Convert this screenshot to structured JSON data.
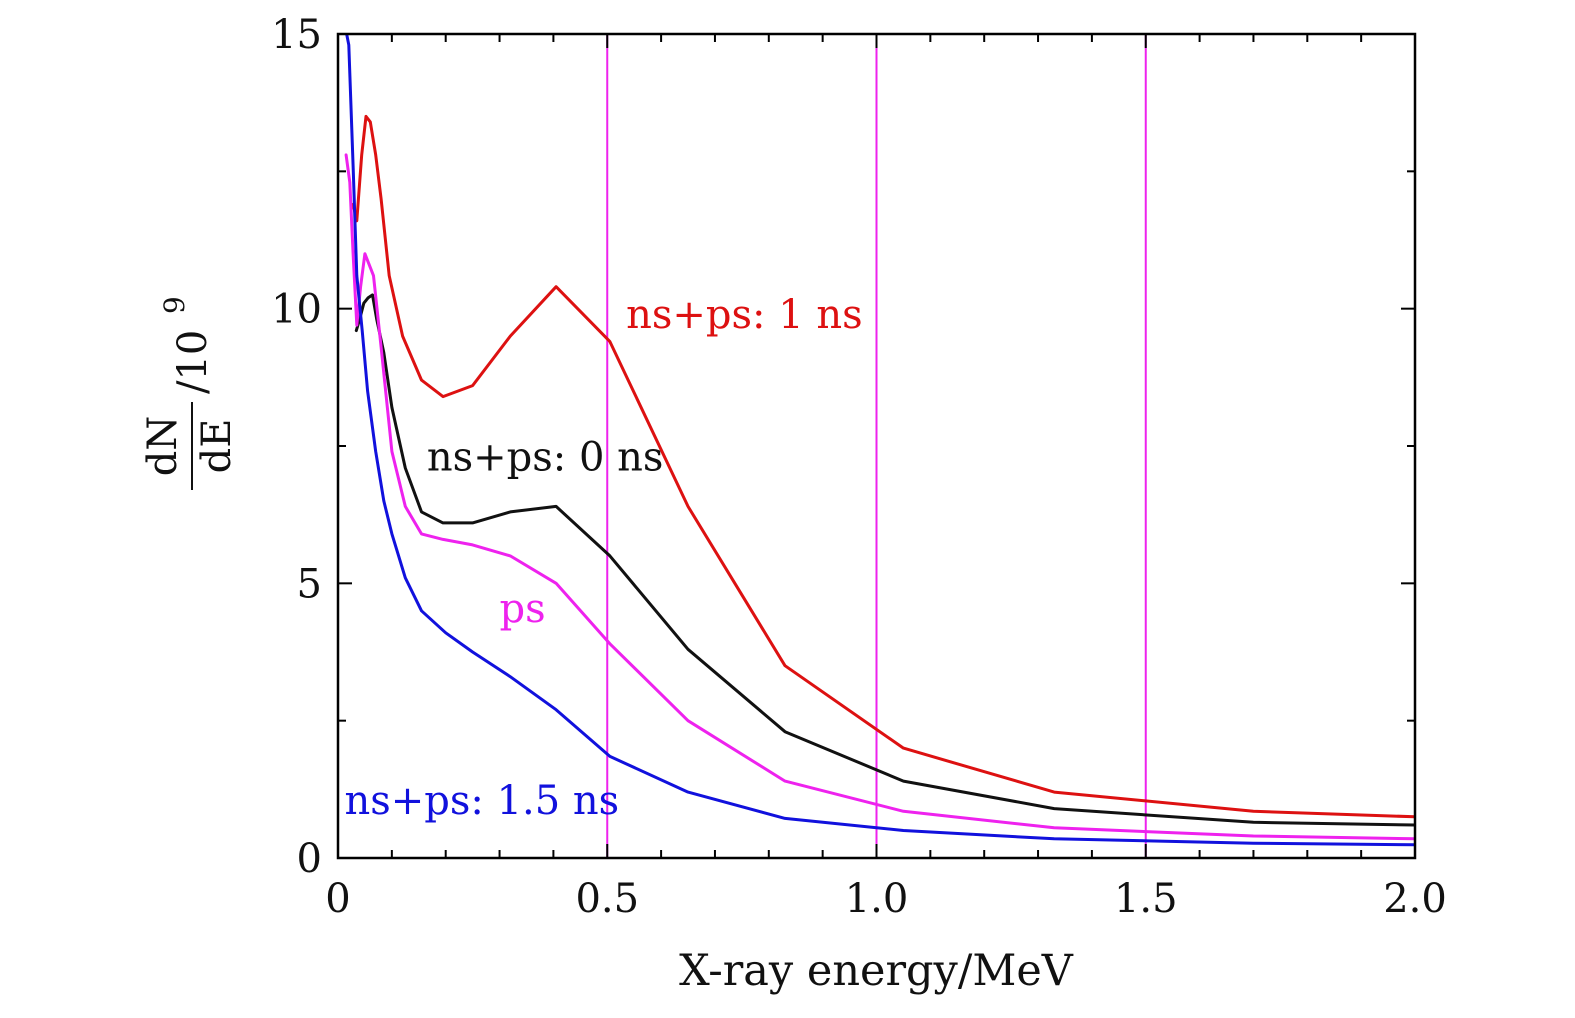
{
  "chart_data": {
    "type": "line",
    "title": "",
    "xlabel": "X-ray energy/MeV",
    "ylabel": {
      "numerator": "dN",
      "denominator": "dE",
      "suffix": "/10",
      "exponent": "9"
    },
    "xlim": [
      0,
      2.0
    ],
    "ylim": [
      0,
      15
    ],
    "x_ticks": [
      0,
      0.5,
      1.0,
      1.5,
      2.0
    ],
    "x_tick_labels": [
      "0",
      "0.5",
      "1.0",
      "1.5",
      "2.0"
    ],
    "y_ticks": [
      0,
      5,
      10,
      15
    ],
    "y_tick_labels": [
      "0",
      "5",
      "10",
      "15"
    ],
    "grid": false,
    "vertical_reference_lines": {
      "x": [
        0.5,
        1.0,
        1.5
      ],
      "color": "#ee22ee"
    },
    "series": [
      {
        "name": "ns+ps: 1 ns",
        "color": "#dd1111",
        "x": [
          0.028,
          0.035,
          0.044,
          0.052,
          0.06,
          0.07,
          0.08,
          0.095,
          0.12,
          0.155,
          0.195,
          0.25,
          0.32,
          0.405,
          0.505,
          0.65,
          0.83,
          1.05,
          1.33,
          1.7,
          2.0
        ],
        "y": [
          11.9,
          11.6,
          12.8,
          13.5,
          13.4,
          12.8,
          12.0,
          10.6,
          9.5,
          8.7,
          8.4,
          8.6,
          9.5,
          10.4,
          9.4,
          6.4,
          3.5,
          2.0,
          1.2,
          0.85,
          0.75
        ]
      },
      {
        "name": "ns+ps: 0 ns",
        "color": "#111111",
        "x": [
          0.034,
          0.04,
          0.048,
          0.056,
          0.064,
          0.072,
          0.085,
          0.1,
          0.125,
          0.155,
          0.195,
          0.25,
          0.32,
          0.405,
          0.505,
          0.65,
          0.83,
          1.05,
          1.33,
          1.7,
          2.0
        ],
        "y": [
          9.6,
          9.8,
          10.1,
          10.2,
          10.25,
          9.8,
          9.2,
          8.2,
          7.1,
          6.3,
          6.1,
          6.1,
          6.3,
          6.4,
          5.5,
          3.8,
          2.3,
          1.4,
          0.9,
          0.65,
          0.6
        ]
      },
      {
        "name": "ps",
        "color": "#ee22ee",
        "x": [
          0.015,
          0.022,
          0.028,
          0.035,
          0.042,
          0.05,
          0.058,
          0.066,
          0.08,
          0.1,
          0.125,
          0.155,
          0.195,
          0.25,
          0.32,
          0.405,
          0.505,
          0.65,
          0.83,
          1.05,
          1.33,
          1.7,
          2.0
        ],
        "y": [
          12.8,
          12.3,
          11.0,
          9.7,
          10.4,
          11.0,
          10.8,
          10.6,
          9.3,
          7.4,
          6.4,
          5.9,
          5.8,
          5.7,
          5.5,
          5.0,
          3.9,
          2.5,
          1.4,
          0.85,
          0.55,
          0.4,
          0.35
        ]
      },
      {
        "name": "ns+ps: 1.5 ns",
        "color": "#1111dd",
        "x": [
          0.012,
          0.02,
          0.028,
          0.035,
          0.045,
          0.055,
          0.07,
          0.085,
          0.1,
          0.125,
          0.155,
          0.2,
          0.25,
          0.32,
          0.405,
          0.505,
          0.65,
          0.83,
          1.05,
          1.33,
          1.7,
          2.0
        ],
        "y": [
          15.2,
          14.8,
          12.6,
          10.6,
          9.6,
          8.5,
          7.4,
          6.5,
          5.9,
          5.1,
          4.5,
          4.1,
          3.75,
          3.3,
          2.7,
          1.85,
          1.2,
          0.72,
          0.5,
          0.35,
          0.27,
          0.24
        ]
      }
    ],
    "annotations": [
      {
        "text": "ns+ps: 1 ns",
        "color": "#dd1111",
        "x": 0.535,
        "y": 9.65
      },
      {
        "text": "ns+ps: 0 ns",
        "color": "#111111",
        "x": 0.165,
        "y": 7.05
      },
      {
        "text": "ps",
        "color": "#ee22ee",
        "x": 0.3,
        "y": 4.3
      },
      {
        "text": "ns+ps: 1.5 ns",
        "color": "#1111dd",
        "x": 0.012,
        "y": 0.8
      }
    ]
  }
}
